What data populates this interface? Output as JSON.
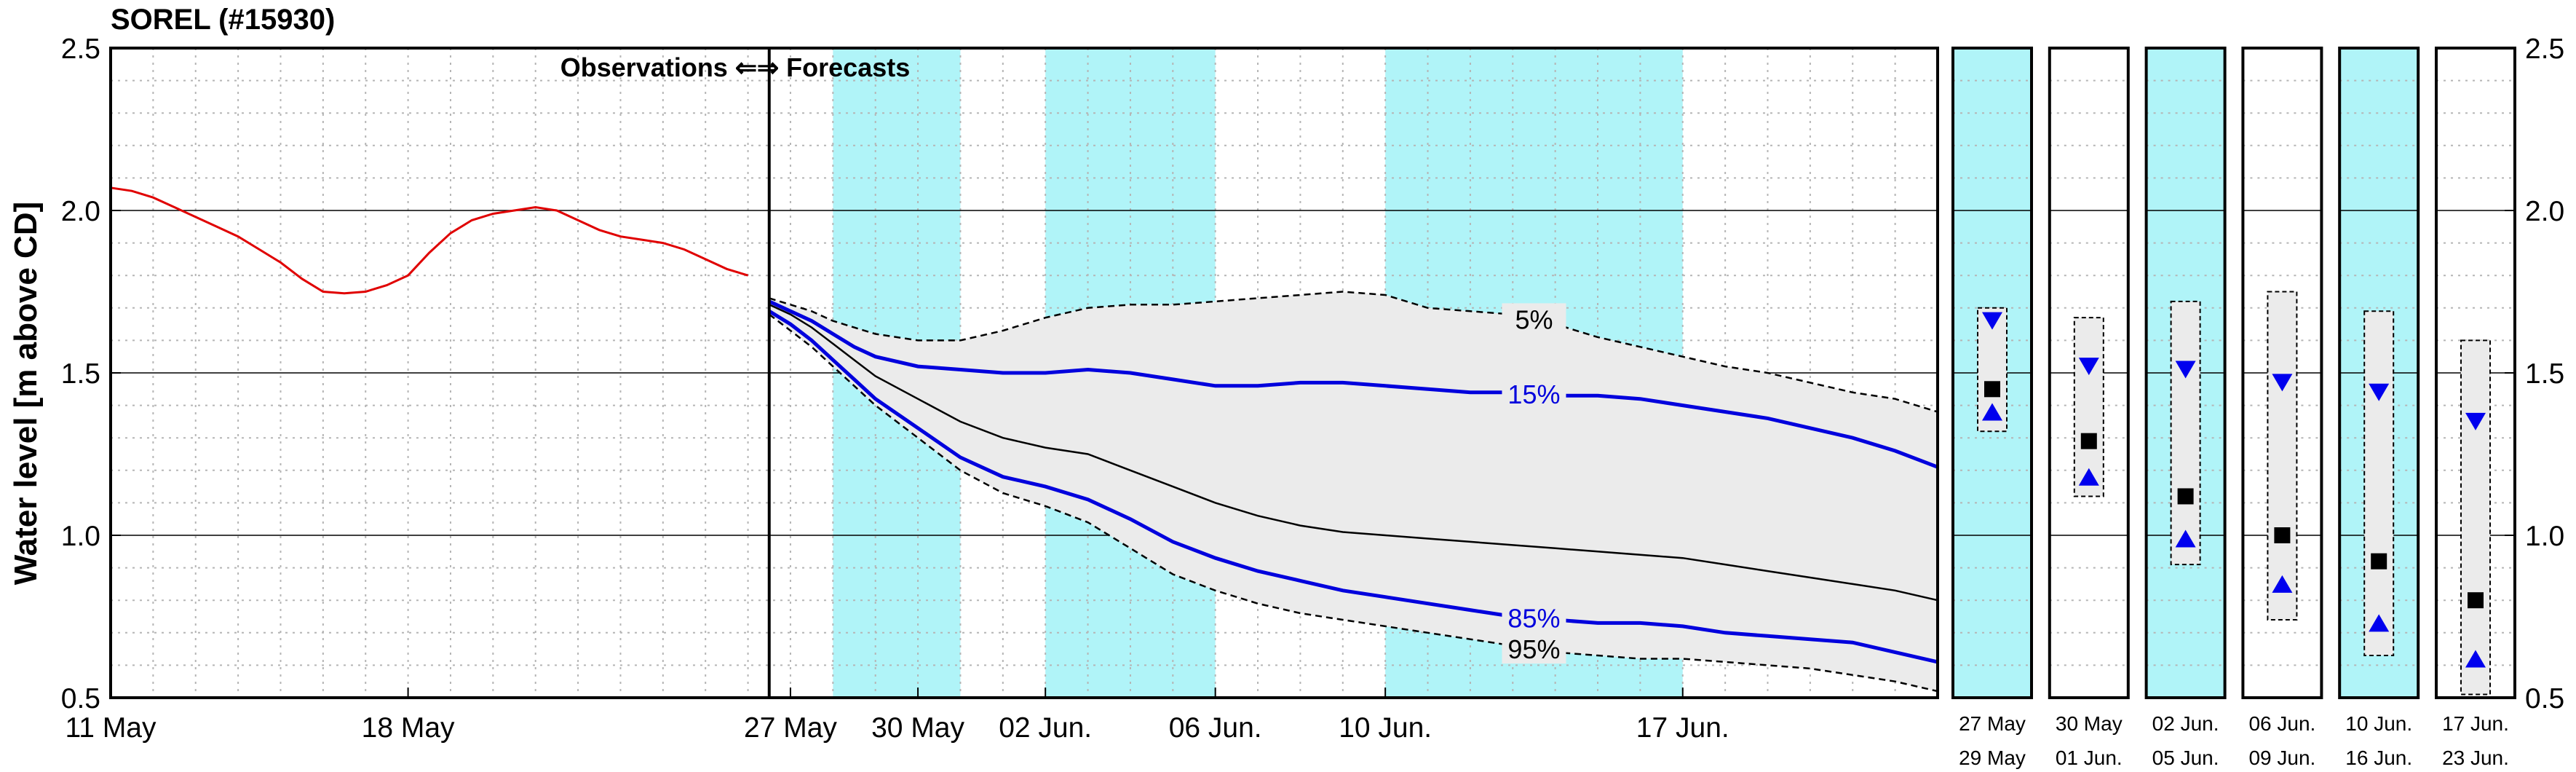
{
  "chart_data": {
    "type": "line",
    "title": "SOREL (#15930)",
    "ylabel": "Water level [m above CD]",
    "ylim": [
      0.5,
      2.5
    ],
    "y_ticks": [
      "0.5",
      "1.0",
      "1.5",
      "2.0",
      "2.5"
    ],
    "grid": true,
    "annotation": "Observations ⇐⇒ Forecasts",
    "x_start": "11 May",
    "x_end": "23 Jun",
    "forecast_start": "27 May",
    "x_ticks": [
      {
        "day": 0,
        "label": "11 May"
      },
      {
        "day": 7,
        "label": "18 May"
      },
      {
        "day": 16,
        "label": "27 May"
      },
      {
        "day": 19,
        "label": "30 May"
      },
      {
        "day": 22,
        "label": "02 Jun."
      },
      {
        "day": 26,
        "label": "06 Jun."
      },
      {
        "day": 30,
        "label": "10 Jun."
      },
      {
        "day": 37,
        "label": "17 Jun."
      }
    ],
    "shaded_periods": [
      [
        17,
        20
      ],
      [
        22,
        26
      ],
      [
        30,
        37
      ]
    ],
    "observed": {
      "color": "#e00000",
      "x": [
        0,
        0.5,
        1,
        1.5,
        2,
        2.5,
        3,
        3.5,
        4,
        4.5,
        5,
        5.5,
        6,
        6.5,
        7,
        7.5,
        8,
        8.5,
        9,
        9.5,
        10,
        10.5,
        11,
        11.5,
        12,
        12.5,
        13,
        13.5,
        14,
        14.5,
        15
      ],
      "y": [
        2.07,
        2.06,
        2.04,
        2.01,
        1.98,
        1.95,
        1.92,
        1.88,
        1.84,
        1.79,
        1.75,
        1.745,
        1.75,
        1.77,
        1.8,
        1.87,
        1.93,
        1.97,
        1.99,
        2.0,
        2.01,
        2.0,
        1.97,
        1.94,
        1.92,
        1.91,
        1.9,
        1.88,
        1.85,
        1.82,
        1.8
      ]
    },
    "forecast_x": [
      15.5,
      16,
      16.5,
      17,
      17.5,
      18,
      19,
      20,
      21,
      22,
      23,
      24,
      25,
      26,
      27,
      28,
      29,
      30,
      31,
      32,
      33,
      34,
      35,
      36,
      37,
      38,
      39,
      40,
      41,
      42,
      43
    ],
    "series": [
      {
        "name": "5%",
        "style": "dashed",
        "color": "#000000",
        "values": [
          1.73,
          1.71,
          1.69,
          1.66,
          1.64,
          1.62,
          1.6,
          1.6,
          1.63,
          1.67,
          1.7,
          1.71,
          1.71,
          1.72,
          1.73,
          1.74,
          1.75,
          1.74,
          1.7,
          1.69,
          1.68,
          1.65,
          1.61,
          1.58,
          1.55,
          1.52,
          1.5,
          1.47,
          1.44,
          1.42,
          1.38
        ]
      },
      {
        "name": "15%",
        "style": "solid",
        "color": "#0000dd",
        "values": [
          1.72,
          1.69,
          1.66,
          1.62,
          1.58,
          1.55,
          1.52,
          1.51,
          1.5,
          1.5,
          1.51,
          1.5,
          1.48,
          1.46,
          1.46,
          1.47,
          1.47,
          1.46,
          1.45,
          1.44,
          1.44,
          1.43,
          1.43,
          1.42,
          1.4,
          1.38,
          1.36,
          1.33,
          1.3,
          1.26,
          1.21
        ]
      },
      {
        "name": "median",
        "style": "solid",
        "color": "#000000",
        "values": [
          1.71,
          1.68,
          1.64,
          1.59,
          1.54,
          1.49,
          1.42,
          1.35,
          1.3,
          1.27,
          1.25,
          1.2,
          1.15,
          1.1,
          1.06,
          1.03,
          1.01,
          1.0,
          0.99,
          0.98,
          0.97,
          0.96,
          0.95,
          0.94,
          0.93,
          0.91,
          0.89,
          0.87,
          0.85,
          0.83,
          0.8
        ]
      },
      {
        "name": "85%",
        "style": "solid",
        "color": "#0000dd",
        "values": [
          1.69,
          1.65,
          1.6,
          1.54,
          1.48,
          1.42,
          1.33,
          1.24,
          1.18,
          1.15,
          1.11,
          1.05,
          0.98,
          0.93,
          0.89,
          0.86,
          0.83,
          0.81,
          0.79,
          0.77,
          0.75,
          0.74,
          0.73,
          0.73,
          0.72,
          0.7,
          0.69,
          0.68,
          0.67,
          0.64,
          0.61
        ]
      },
      {
        "name": "95%",
        "style": "dashed",
        "color": "#000000",
        "values": [
          1.68,
          1.63,
          1.58,
          1.52,
          1.46,
          1.4,
          1.3,
          1.2,
          1.13,
          1.09,
          1.04,
          0.96,
          0.88,
          0.83,
          0.79,
          0.76,
          0.74,
          0.72,
          0.7,
          0.68,
          0.66,
          0.64,
          0.63,
          0.62,
          0.62,
          0.61,
          0.6,
          0.59,
          0.57,
          0.55,
          0.52
        ]
      }
    ],
    "period_y_ticks": [
      "0.5",
      "1.0",
      "1.5",
      "2.0",
      "2.5"
    ],
    "periods": [
      {
        "label1": "27 May",
        "label2": "29 May",
        "shaded": true,
        "upper": 1.7,
        "lower": 1.32,
        "p15": 1.66,
        "median": 1.45,
        "p85": 1.38
      },
      {
        "label1": "30 May",
        "label2": "01 Jun.",
        "shaded": false,
        "upper": 1.67,
        "lower": 1.12,
        "p15": 1.52,
        "median": 1.29,
        "p85": 1.18
      },
      {
        "label1": "02 Jun.",
        "label2": "05 Jun.",
        "shaded": true,
        "upper": 1.72,
        "lower": 0.91,
        "p15": 1.51,
        "median": 1.12,
        "p85": 0.99
      },
      {
        "label1": "06 Jun.",
        "label2": "09 Jun.",
        "shaded": false,
        "upper": 1.75,
        "lower": 0.74,
        "p15": 1.47,
        "median": 1.0,
        "p85": 0.85
      },
      {
        "label1": "10 Jun.",
        "label2": "16 Jun.",
        "shaded": true,
        "upper": 1.69,
        "lower": 0.63,
        "p15": 1.44,
        "median": 0.92,
        "p85": 0.73
      },
      {
        "label1": "17 Jun.",
        "label2": "23 Jun.",
        "shaded": false,
        "upper": 1.6,
        "lower": 0.51,
        "p15": 1.35,
        "median": 0.8,
        "p85": 0.62
      }
    ],
    "colors": {
      "shade": "#b0f4f8",
      "band": "#ebebeb",
      "grid_minor": "#b5b5b5",
      "grid_major": "#000000"
    }
  }
}
